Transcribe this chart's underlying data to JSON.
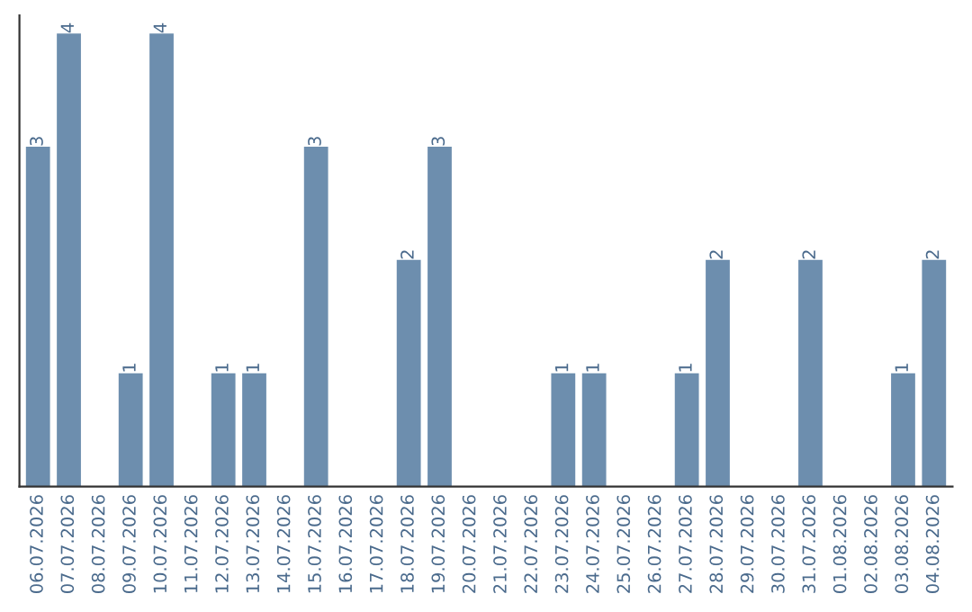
{
  "chart_data": {
    "type": "bar",
    "categories": [
      "06.07.2026",
      "07.07.2026",
      "08.07.2026",
      "09.07.2026",
      "10.07.2026",
      "11.07.2026",
      "12.07.2026",
      "13.07.2026",
      "14.07.2026",
      "15.07.2026",
      "16.07.2026",
      "17.07.2026",
      "18.07.2026",
      "19.07.2026",
      "20.07.2026",
      "21.07.2026",
      "22.07.2026",
      "23.07.2026",
      "24.07.2026",
      "25.07.2026",
      "26.07.2026",
      "27.07.2026",
      "28.07.2026",
      "29.07.2026",
      "30.07.2026",
      "31.07.2026",
      "01.08.2026",
      "02.08.2026",
      "03.08.2026",
      "04.08.2026"
    ],
    "values": [
      3,
      4,
      0,
      1,
      4,
      0,
      1,
      1,
      0,
      3,
      0,
      0,
      2,
      3,
      0,
      0,
      0,
      1,
      1,
      0,
      0,
      1,
      2,
      0,
      0,
      2,
      0,
      0,
      1,
      2
    ],
    "value_labels": [
      "3",
      "4",
      null,
      "1",
      "4",
      null,
      "1",
      "1",
      null,
      "3",
      null,
      null,
      "2",
      "3",
      null,
      null,
      null,
      "1",
      "1",
      null,
      null,
      "1",
      "2",
      null,
      null,
      "2",
      null,
      null,
      "1",
      "2"
    ],
    "color": "#6d8eae",
    "tick_labels": "x",
    "grid": false,
    "legend": false
  }
}
